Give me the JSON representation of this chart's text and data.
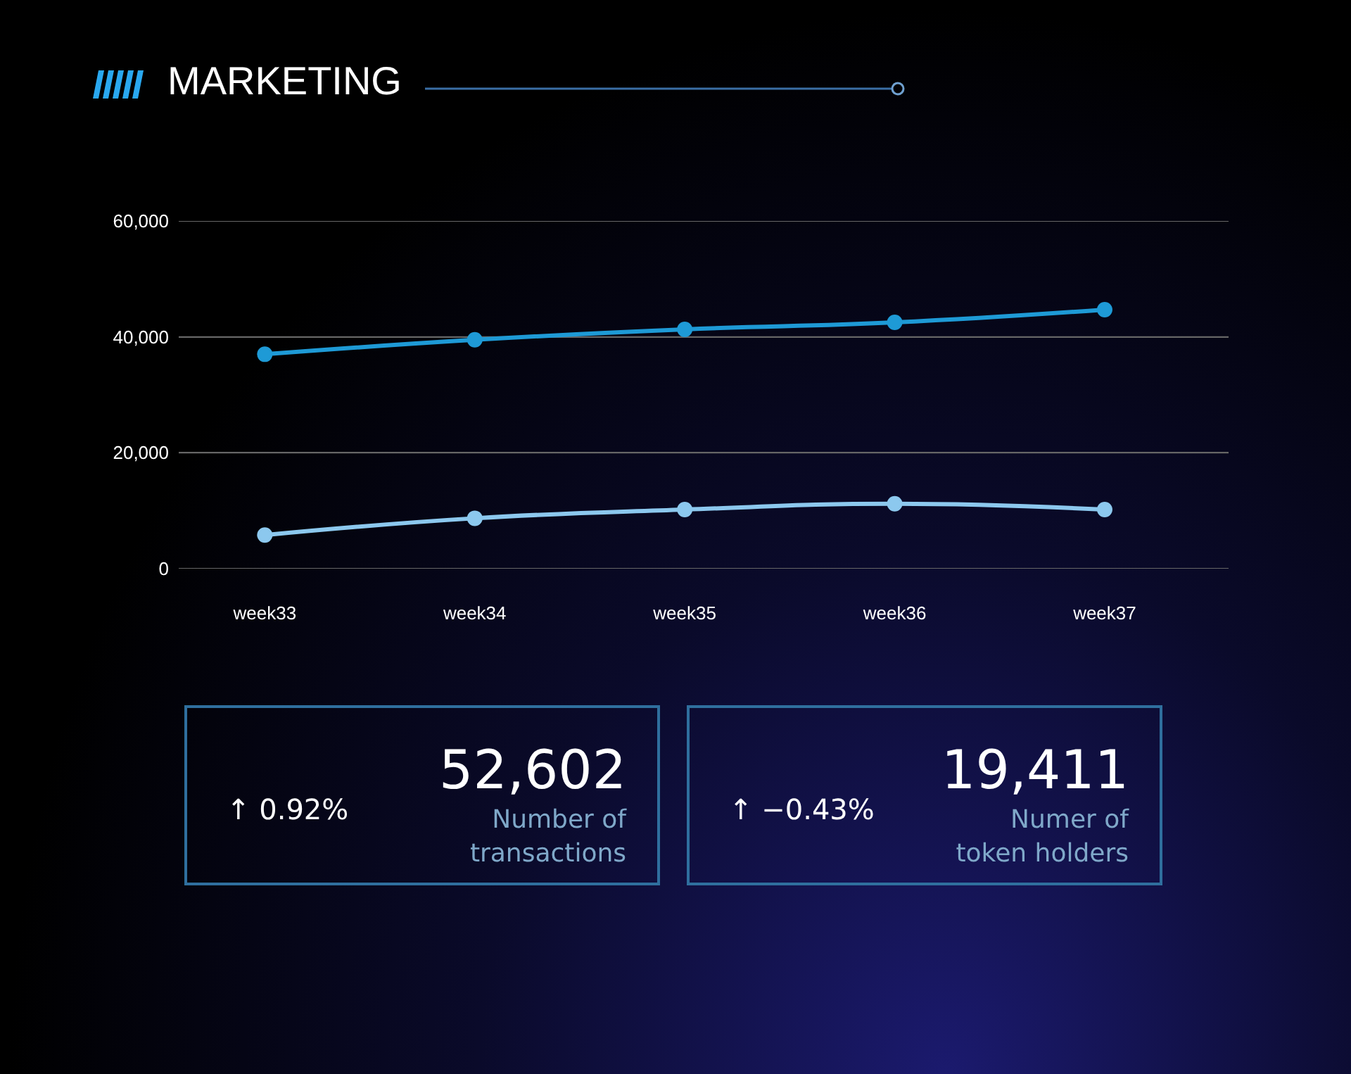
{
  "chart_data": {
    "type": "line",
    "title": "MARKETING",
    "categories": [
      "week33",
      "week34",
      "week35",
      "week36",
      "week37"
    ],
    "series": [
      {
        "color": "#1e9ad6",
        "values": [
          37000,
          39500,
          41300,
          42500,
          44700
        ]
      },
      {
        "color": "#8cc8ee",
        "values": [
          5800,
          8700,
          10200,
          11200,
          10200
        ]
      }
    ],
    "ylim": [
      0,
      60000
    ],
    "yticks": [
      {
        "value": 0,
        "label": "0"
      },
      {
        "value": 20000,
        "label": "20,000"
      },
      {
        "value": 40000,
        "label": "40,000"
      },
      {
        "value": 60000,
        "label": "60,000"
      }
    ],
    "grid": "y",
    "marker": "circle",
    "line_style": "solid",
    "annotations": [
      "↑ 0.92%",
      "52,602",
      "Number of transactions",
      "↑ −0.43%",
      "19,411",
      "Numer of token holders"
    ]
  }
}
